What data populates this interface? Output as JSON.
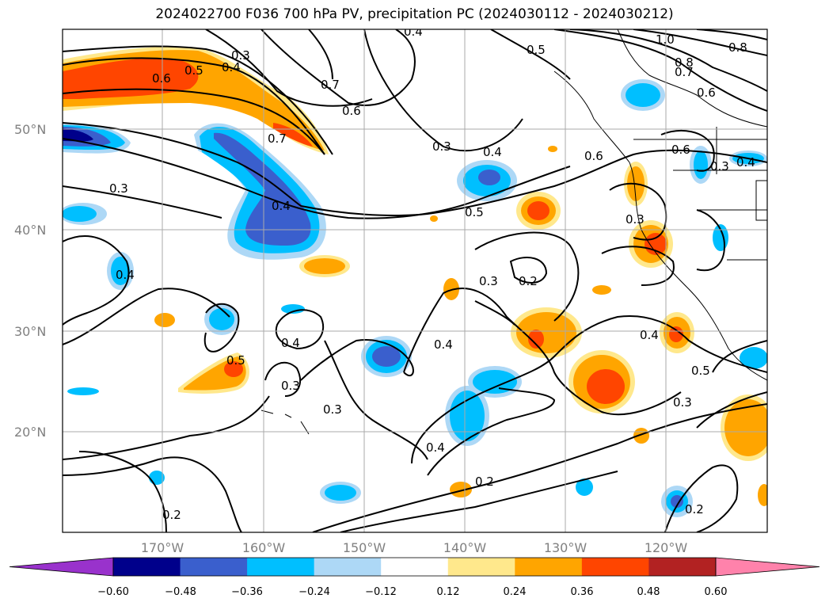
{
  "title": "2024022700 F036 700 hPa PV, precipitation PC (2024030112 - 2024030212)",
  "axes": {
    "lat_labels": [
      "50°N",
      "40°N",
      "30°N",
      "20°N"
    ],
    "lon_labels": [
      "170°W",
      "160°W",
      "150°W",
      "140°W",
      "130°W",
      "120°W"
    ]
  },
  "contour_labels": [
    "0.4",
    "0.3",
    "0.4",
    "0.5",
    "1.0",
    "0.8",
    "0.8",
    "0.7",
    "0.6",
    "0.5",
    "0.6",
    "0.7",
    "0.6",
    "0.7",
    "0.3",
    "0.4",
    "0.6",
    "0.6",
    "0.4",
    "0.3",
    "0.4",
    "0.5",
    "0.3",
    "0.4",
    "0.3",
    "0.2",
    "0.4",
    "0.4",
    "0.3",
    "0.3",
    "0.4",
    "0.5",
    "0.3",
    "0.4",
    "0.2",
    "0.2",
    "0.2",
    "0.3",
    "0.5"
  ],
  "colorbar": {
    "ticks": [
      "−0.60",
      "−0.48",
      "−0.36",
      "−0.24",
      "−0.12",
      "0.12",
      "0.24",
      "0.36",
      "0.48",
      "0.60"
    ],
    "colors": [
      "#9932cc",
      "#00008b",
      "#3a5fcd",
      "#00bfff",
      "#add8f6",
      "#ffffff",
      "#ffe88c",
      "#ffa500",
      "#ff4500",
      "#b22222",
      "#ff82ab"
    ]
  }
}
